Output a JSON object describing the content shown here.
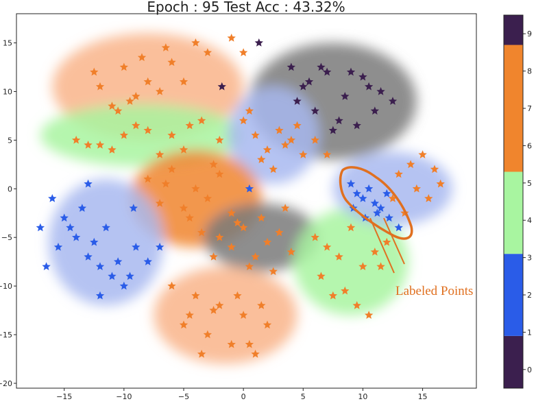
{
  "chart_data": {
    "type": "scatter",
    "title": "Epoch : 95  Test Acc : 43.32%",
    "xlabel": "",
    "ylabel": "",
    "xlim": [
      -19,
      19.5
    ],
    "ylim": [
      -20.5,
      18
    ],
    "xticks": [
      "−15",
      "−10",
      "−5",
      "0",
      "5",
      "10",
      "15"
    ],
    "yticks": [
      "15",
      "10",
      "5",
      "0",
      "−5",
      "−10",
      "−15",
      "−20"
    ],
    "grid": false,
    "annotation": "Labeled Points",
    "colorbar": {
      "ticks": [
        "0",
        "1",
        "2",
        "3",
        "4",
        "5",
        "6",
        "7",
        "8",
        "9"
      ],
      "range": [
        -0.5,
        9.5
      ],
      "segments": [
        {
          "from": -0.5,
          "to": 0.9,
          "color": "#3b1f4e"
        },
        {
          "from": 0.9,
          "to": 3.1,
          "color": "#2a5ce8"
        },
        {
          "from": 3.1,
          "to": 5.3,
          "color": "#a8f5a0"
        },
        {
          "from": 5.3,
          "to": 8.7,
          "color": "#f0852d"
        },
        {
          "from": 8.7,
          "to": 9.5,
          "color": "#3b1f4e"
        }
      ]
    },
    "clusters": [
      {
        "class": "9",
        "color": "#7a7a7a",
        "cx": 7.5,
        "cy": 9,
        "rx": 7,
        "ry": 6
      },
      {
        "class": "6",
        "color": "#f9b48a",
        "cx": -8,
        "cy": 10.5,
        "rx": 8,
        "ry": 5.5
      },
      {
        "class": "4",
        "color": "#a8f5a0",
        "cx": -8.5,
        "cy": 5.5,
        "rx": 8.5,
        "ry": 3.2
      },
      {
        "class": "3",
        "color": "#a8b8f0",
        "cx": 2.5,
        "cy": 5.5,
        "rx": 3.8,
        "ry": 5
      },
      {
        "class": "8",
        "color": "#f0852d",
        "cx": -4,
        "cy": -1,
        "rx": 5.5,
        "ry": 5
      },
      {
        "class": "1",
        "color": "#a8b8f0",
        "cx": -11.5,
        "cy": -5.5,
        "rx": 4.8,
        "ry": 6.5
      },
      {
        "class": "0",
        "color": "#7a7a7a",
        "cx": 1.5,
        "cy": -5,
        "rx": 4.8,
        "ry": 3.5
      },
      {
        "class": "5",
        "color": "#a8f5a0",
        "cx": 9,
        "cy": -7.5,
        "rx": 4.8,
        "ry": 5.5
      },
      {
        "class": "2",
        "color": "#a8b8f0",
        "cx": 12.5,
        "cy": 0,
        "rx": 5,
        "ry": 3.8
      },
      {
        "class": "7",
        "color": "#f9b48a",
        "cx": -1.5,
        "cy": -13,
        "rx": 6,
        "ry": 5
      }
    ],
    "series": [
      {
        "class": "9",
        "color": "#3b1f4e",
        "x": [
          4,
          5.5,
          7,
          8.5,
          10,
          11.5,
          12.5,
          4.5,
          6,
          8,
          9.5,
          11,
          6.5,
          9,
          10.5,
          7.5,
          5,
          1.3,
          -1.8
        ],
        "y": [
          12.5,
          11,
          12,
          9.5,
          11.5,
          10,
          9,
          9,
          8,
          7,
          6.5,
          8,
          12.5,
          12,
          10.5,
          6,
          10.5,
          15,
          10.5
        ]
      },
      {
        "class": "6",
        "color": "#f07f2a",
        "x": [
          -10,
          -8,
          -6,
          -4,
          -12,
          -9,
          -7,
          -5,
          -11,
          -8.5,
          -6.5,
          -3,
          -12.5,
          -10.5,
          -9.5,
          -1,
          0
        ],
        "y": [
          12.5,
          11,
          13,
          15,
          10.5,
          9.5,
          10,
          11,
          8.5,
          13.5,
          14.5,
          14,
          12,
          8,
          9,
          15.5,
          14
        ]
      },
      {
        "class": "4",
        "color": "#f07f2a",
        "x": [
          -14,
          -12,
          -10,
          -8,
          -6,
          -4.5,
          -3.5,
          -2,
          -11,
          -9,
          -7,
          -5,
          -13
        ],
        "y": [
          5,
          4.5,
          5.5,
          6,
          5.5,
          6.5,
          7,
          5,
          4,
          6.5,
          3.5,
          4,
          4.5
        ]
      },
      {
        "class": "3",
        "color": "#f07f2a",
        "x": [
          0,
          1,
          2,
          3,
          4,
          5,
          1.5,
          2.5,
          3.5,
          0.5,
          4.5,
          6,
          7
        ],
        "y": [
          7,
          5.5,
          4,
          6,
          5,
          3.5,
          3,
          2,
          4.5,
          8,
          6.5,
          5,
          3.5
        ]
      },
      {
        "class": "8",
        "color": "#f07f2a",
        "x": [
          -8,
          -6,
          -4,
          -2,
          -7,
          -5,
          -3,
          -1,
          -6.5,
          -4.5,
          -2.5,
          -3.5
        ],
        "y": [
          1,
          2,
          0,
          1.5,
          -1.5,
          -2,
          -1,
          -2.5,
          0.5,
          -3,
          2.5,
          -4.5
        ]
      },
      {
        "class": "1",
        "color": "#2a5ce8",
        "x": [
          -16,
          -15,
          -14,
          -13,
          -12,
          -11,
          -10,
          -9,
          -15.5,
          -14.5,
          -13.5,
          -12.5,
          -11.5,
          -10.5,
          -9.5,
          -8,
          -7,
          -13,
          -12,
          -17,
          -16.5,
          -9.2,
          0.5
        ],
        "y": [
          -1,
          -3,
          -5,
          -7,
          -8,
          -9,
          -10,
          -6,
          -6,
          -4,
          -2,
          -5.5,
          -4,
          -7.5,
          -9,
          -7.5,
          -6,
          0.5,
          -11,
          -4,
          -8,
          -2,
          0
        ]
      },
      {
        "class": "0",
        "color": "#f07f2a",
        "x": [
          -2,
          -1,
          0,
          1,
          2,
          3,
          4,
          -0.5,
          0.5,
          1.5,
          2.5,
          3.5,
          -2.5
        ],
        "y": [
          -5,
          -6,
          -4,
          -7,
          -5.5,
          -4.5,
          -6.5,
          -3.5,
          -8,
          -3,
          -8.5,
          -2,
          -7
        ]
      },
      {
        "class": "5",
        "color": "#f07f2a",
        "x": [
          6,
          7,
          8,
          9,
          10,
          11,
          12,
          6.5,
          7.5,
          8.5,
          9.5,
          10.5,
          11.5
        ],
        "y": [
          -5,
          -6,
          -7,
          -4,
          -8,
          -6.5,
          -5.5,
          -9,
          -11,
          -10.5,
          -12,
          -13,
          -8
        ]
      },
      {
        "class": "2",
        "color": "#2a5ce8",
        "x": [
          9,
          9.5,
          10,
          10.5,
          11,
          11.5,
          12,
          9.2,
          10.2,
          11.2,
          12.2,
          13
        ],
        "y": [
          0.5,
          -0.5,
          -1,
          0,
          -1.5,
          -2,
          -0.5,
          -2,
          -3,
          -2.5,
          -3,
          -4
        ]
      },
      {
        "class": "2",
        "color": "#f07f2a",
        "x": [
          13,
          14,
          15,
          16,
          14.5,
          15.5,
          16.5,
          13.5,
          12.5
        ],
        "y": [
          1.5,
          2.5,
          3.5,
          2,
          0,
          -1,
          0.5,
          -2.5,
          -1
        ]
      },
      {
        "class": "7",
        "color": "#f07f2a",
        "x": [
          -6,
          -4,
          -2,
          0,
          2,
          -5,
          -3,
          -1,
          1,
          -4.5,
          -2.5,
          -0.5,
          1.5,
          -3.5,
          0.5
        ],
        "y": [
          -10,
          -11,
          -12,
          -13,
          -14,
          -14,
          -15,
          -16,
          -17,
          -13,
          -12.5,
          -11,
          -12,
          -17,
          -16
        ]
      }
    ]
  }
}
